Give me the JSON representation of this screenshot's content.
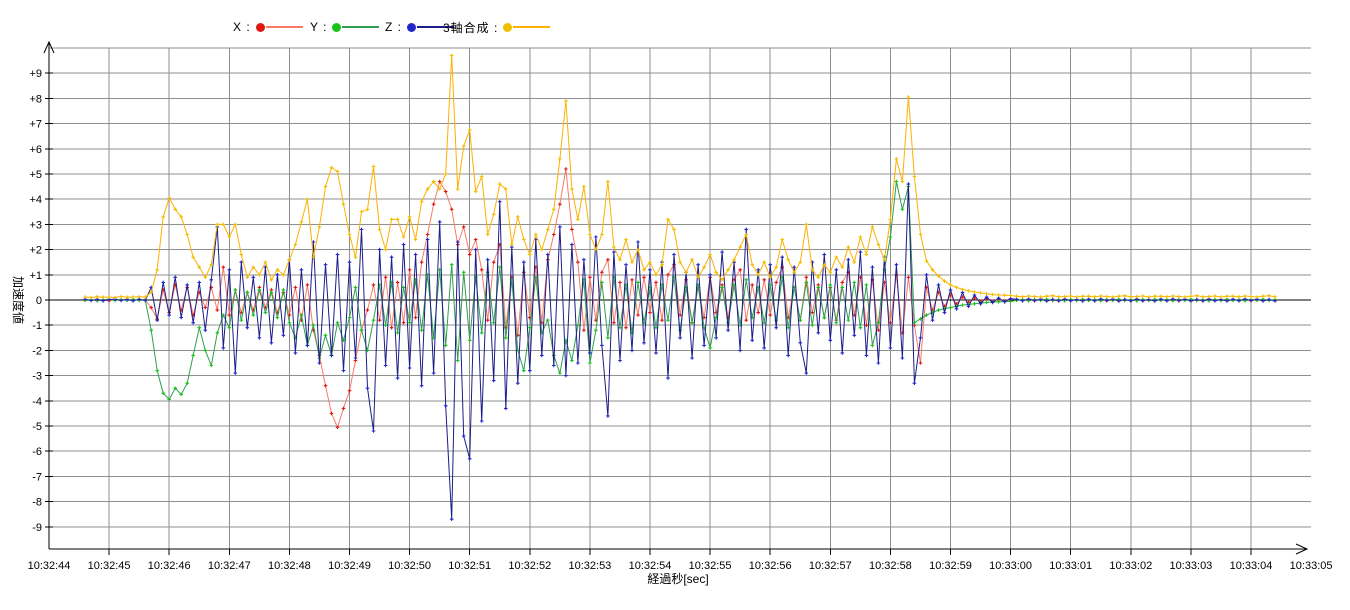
{
  "chart_data": {
    "type": "line",
    "title": "",
    "grid": true,
    "grid_color": "#8f8f8f",
    "axis_color": "#000000",
    "x_axis": {
      "label": "経過秒[sec]",
      "tick_labels": [
        "10:32:44",
        "10:32:45",
        "10:32:46",
        "10:32:47",
        "10:32:48",
        "10:32:49",
        "10:32:50",
        "10:32:51",
        "10:32:52",
        "10:32:53",
        "10:32:54",
        "10:32:55",
        "10:32:56",
        "10:32:57",
        "10:32:58",
        "10:32:59",
        "10:33:00",
        "10:33:01",
        "10:33:02",
        "10:33:03",
        "10:33:04",
        "10:33:05"
      ]
    },
    "y_axis": {
      "label": "加速度値",
      "min": -10,
      "max": 10,
      "tick_values": [
        9,
        8,
        7,
        6,
        5,
        4,
        3,
        2,
        1,
        0,
        -1,
        -2,
        -3,
        -4,
        -5,
        -6,
        -7,
        -8,
        -9
      ],
      "tick_labels": [
        "+9",
        "+8",
        "+7",
        "+6",
        "+5",
        "+4",
        "+3",
        "+2",
        "+1",
        "0",
        "-1",
        "-2",
        "-3",
        "-4",
        "-5",
        "-6",
        "-7",
        "-8",
        "-9"
      ]
    },
    "sampling": {
      "t0": 0.6,
      "dt": 0.1,
      "t_unit": "seconds after 10:32:44"
    },
    "legend_position": "top",
    "series": [
      {
        "id": "x",
        "name": "X :",
        "marker_color": "#e01810",
        "line_color": "#f87a66",
        "values": [
          0.02,
          -0.02,
          0.03,
          0.0,
          -0.03,
          0.02,
          0.0,
          0.03,
          -0.02,
          0.02,
          0.0,
          -0.3,
          -0.75,
          0.4,
          -0.5,
          0.6,
          -0.4,
          0.5,
          -0.6,
          0.3,
          -0.3,
          0.5,
          -0.4,
          1.3,
          -0.6,
          0.4,
          -0.5,
          0.3,
          -0.4,
          0.5,
          -0.3,
          0.4,
          -0.5,
          0.3,
          -0.6,
          0.5,
          -0.8,
          0.6,
          -1.2,
          -2.2,
          -3.4,
          -4.5,
          -5.05,
          -4.3,
          -3.6,
          -2.4,
          -1.2,
          -0.4,
          0.6,
          -0.8,
          0.9,
          -1.1,
          0.7,
          -0.9,
          1.2,
          -0.7,
          1.5,
          2.6,
          3.8,
          4.7,
          4.3,
          3.6,
          2.2,
          2.9,
          1.8,
          2.4,
          1.2,
          -0.8,
          1.5,
          2.2,
          -1.1,
          0.9,
          -1.4,
          1.1,
          -0.7,
          1.3,
          -0.9,
          1.6,
          2.6,
          3.8,
          5.2,
          2.8,
          1.5,
          -1.2,
          0.9,
          -0.8,
          1.1,
          1.6,
          -0.9,
          0.7,
          -1.1,
          0.8,
          -0.6,
          0.9,
          -0.5,
          0.7,
          -0.8,
          1.0,
          1.4,
          -0.6,
          0.8,
          -0.9,
          0.5,
          -0.7,
          0.9,
          -0.5,
          0.6,
          -0.7,
          0.8,
          1.2,
          -0.8,
          0.6,
          -0.5,
          0.8,
          -0.6,
          0.7,
          1.3,
          -0.7,
          0.5,
          -0.8,
          0.9,
          -0.5,
          0.6,
          -0.7,
          0.5,
          -0.8,
          0.7,
          1.1,
          -0.6,
          0.9,
          -1.0,
          0.8,
          -1.2,
          0.7,
          -0.9,
          1.0,
          -1.3,
          0.9,
          -1.0,
          -2.5,
          0.5,
          -0.4,
          0.3,
          -0.25,
          0.2,
          -0.15,
          0.12,
          -0.1,
          0.08,
          -0.06,
          0.05,
          -0.05,
          0.04,
          -0.04,
          0.03,
          0.02,
          -0.02,
          0.03,
          -0.03,
          0.02,
          -0.02,
          0.01,
          -0.03,
          0.03,
          -0.01,
          0.02,
          -0.02,
          0.02,
          -0.02,
          0.03,
          -0.03,
          0.02,
          -0.02,
          0.01,
          -0.03,
          0.03,
          -0.01,
          0.02,
          -0.02,
          0.02,
          -0.02,
          0.03,
          -0.03,
          0.02,
          -0.02,
          0.01,
          -0.03,
          0.03,
          -0.01,
          0.02,
          -0.02,
          0.02,
          -0.02,
          0.03,
          -0.03,
          0.02,
          -0.02,
          0.01,
          -0.03
        ]
      },
      {
        "id": "y",
        "name": "Y :",
        "marker_color": "#18c418",
        "line_color": "#2f9e4f",
        "values": [
          -0.02,
          0.02,
          -0.03,
          0.01,
          0.03,
          -0.02,
          0.02,
          -0.01,
          0.03,
          -0.02,
          0.01,
          -1.2,
          -2.8,
          -3.7,
          -3.95,
          -3.5,
          -3.75,
          -3.3,
          -2.2,
          -1.1,
          -2.0,
          -2.6,
          -1.3,
          -0.6,
          -1.1,
          0.4,
          -0.8,
          0.3,
          -0.6,
          0.4,
          -0.5,
          0.3,
          -0.7,
          0.4,
          -0.9,
          -1.5,
          -0.6,
          -1.8,
          -1.0,
          -2.3,
          -1.4,
          -2.2,
          -0.9,
          -1.6,
          -0.7,
          0.5,
          -1.2,
          -2.0,
          -0.8,
          0.6,
          -1.0,
          0.7,
          -1.3,
          0.5,
          -0.9,
          0.8,
          -1.2,
          1.0,
          -1.5,
          1.2,
          -1.8,
          1.4,
          -2.4,
          1.1,
          -1.6,
          0.9,
          -1.3,
          1.1,
          -0.9,
          1.3,
          -1.5,
          0.8,
          -2.0,
          -2.8,
          -1.1,
          0.9,
          -1.3,
          -0.8,
          -2.2,
          -2.9,
          -1.6,
          -2.4,
          -1.0,
          0.8,
          -2.5,
          -1.2,
          0.7,
          -1.5,
          0.9,
          -1.1,
          0.6,
          -1.3,
          0.7,
          -0.9,
          0.5,
          -1.1,
          0.6,
          -0.8,
          0.9,
          -1.2,
          0.5,
          -0.9,
          0.6,
          -1.1,
          -1.9,
          -0.7,
          0.5,
          -0.9,
          0.6,
          -1.0,
          0.8,
          -0.7,
          0.5,
          -0.9,
          0.6,
          -0.8,
          0.9,
          -1.1,
          0.5,
          -0.8,
          0.7,
          -1.0,
          0.5,
          -0.7,
          0.6,
          -0.9,
          0.5,
          -0.8,
          0.7,
          -1.1,
          0.6,
          -1.8,
          -0.9,
          1.2,
          2.5,
          4.7,
          3.6,
          4.5,
          -0.9,
          -0.75,
          -0.6,
          -0.5,
          -0.4,
          -0.35,
          -0.3,
          -0.25,
          -0.2,
          -0.18,
          -0.15,
          -0.12,
          -0.1,
          -0.08,
          -0.07,
          -0.06,
          -0.05,
          -0.02,
          0.02,
          -0.03,
          0.02,
          -0.01,
          0.03,
          -0.02,
          0.01,
          -0.03,
          0.02,
          -0.02,
          0.03,
          -0.02,
          0.02,
          -0.03,
          0.02,
          -0.01,
          0.03,
          -0.02,
          0.01,
          -0.03,
          0.02,
          -0.02,
          0.03,
          -0.02,
          0.02,
          -0.03,
          0.02,
          -0.01,
          0.03,
          -0.02,
          0.01,
          -0.03,
          0.02,
          -0.02,
          0.03,
          -0.02,
          0.02,
          -0.03,
          0.02,
          -0.01,
          0.03,
          -0.02,
          0.01
        ]
      },
      {
        "id": "z",
        "name": "Z :",
        "marker_color": "#2228c8",
        "line_color": "#1c1c8a",
        "values": [
          0.03,
          -0.02,
          0.02,
          -0.03,
          0.02,
          0.03,
          -0.02,
          0.02,
          -0.03,
          0.03,
          -0.02,
          0.5,
          -0.8,
          0.7,
          -0.6,
          0.9,
          -0.7,
          0.6,
          -0.9,
          0.7,
          -1.2,
          0.8,
          2.9,
          -1.9,
          1.2,
          -2.9,
          1.5,
          -1.1,
          0.9,
          -1.5,
          1.3,
          -1.7,
          1.0,
          -1.4,
          1.6,
          -2.1,
          1.2,
          -1.8,
          2.3,
          -2.5,
          1.4,
          -2.2,
          1.8,
          -2.8,
          1.5,
          -2.3,
          2.8,
          -3.5,
          -5.2,
          2.0,
          -2.6,
          1.7,
          -3.1,
          2.2,
          -2.7,
          1.8,
          -3.4,
          2.4,
          -2.9,
          3.1,
          -4.2,
          -8.7,
          2.3,
          -5.4,
          -6.3,
          2.0,
          -4.8,
          1.6,
          -3.2,
          3.9,
          -4.3,
          2.1,
          -3.3,
          1.5,
          -2.8,
          2.4,
          -2.2,
          1.8,
          -2.6,
          2.9,
          -3.0,
          2.2,
          -2.5,
          1.6,
          -2.1,
          2.5,
          -1.8,
          -4.6,
          1.9,
          -2.4,
          1.4,
          -2.0,
          2.3,
          -1.7,
          1.2,
          -2.1,
          1.5,
          -3.1,
          1.8,
          -1.5,
          1.1,
          -2.3,
          1.4,
          -1.8,
          1.0,
          -1.5,
          1.9,
          -1.2,
          1.5,
          -2.0,
          2.8,
          -1.6,
          1.2,
          -1.9,
          1.4,
          -1.1,
          1.7,
          -2.2,
          1.3,
          -1.7,
          -2.9,
          1.5,
          -1.3,
          1.8,
          -1.6,
          1.2,
          -2.1,
          1.6,
          -1.4,
          1.9,
          -2.2,
          1.3,
          -2.5,
          1.7,
          -1.9,
          1.4,
          -2.3,
          4.6,
          -3.3,
          -1.5,
          1.0,
          -0.8,
          0.6,
          -0.5,
          0.4,
          -0.35,
          0.3,
          -0.25,
          0.2,
          -0.15,
          0.12,
          -0.1,
          0.08,
          -0.07,
          0.05,
          0.03,
          -0.03,
          0.04,
          -0.02,
          0.03,
          -0.04,
          0.02,
          -0.03,
          0.04,
          -0.03,
          0.02,
          -0.04,
          0.03,
          -0.03,
          0.04,
          -0.02,
          0.03,
          -0.04,
          0.02,
          -0.03,
          0.04,
          -0.03,
          0.02,
          -0.04,
          0.03,
          -0.03,
          0.04,
          -0.02,
          0.03,
          -0.04,
          0.02,
          -0.03,
          0.04,
          -0.03,
          0.02,
          -0.04,
          0.03,
          -0.03,
          0.04,
          -0.02,
          0.03,
          -0.04,
          0.02,
          -0.03
        ]
      },
      {
        "id": "composite",
        "name": "3軸合成 :",
        "marker_color": "#f0c000",
        "line_color": "#ffb000",
        "values": [
          0.12,
          0.1,
          0.13,
          0.11,
          0.12,
          0.1,
          0.14,
          0.11,
          0.12,
          0.13,
          0.12,
          0.3,
          1.2,
          3.3,
          4.05,
          3.6,
          3.3,
          2.6,
          1.7,
          1.3,
          0.9,
          1.4,
          3.0,
          3.0,
          2.5,
          3.0,
          1.8,
          0.9,
          1.3,
          1.0,
          1.5,
          0.8,
          1.2,
          1.0,
          1.6,
          2.2,
          3.1,
          4.0,
          1.7,
          2.9,
          4.5,
          5.25,
          5.1,
          3.8,
          2.6,
          1.7,
          3.5,
          3.6,
          5.3,
          2.8,
          2.0,
          3.2,
          3.2,
          2.5,
          3.3,
          2.4,
          3.9,
          4.4,
          4.7,
          4.4,
          5.0,
          9.7,
          4.4,
          6.1,
          6.75,
          4.3,
          4.9,
          2.6,
          3.4,
          4.6,
          4.4,
          2.2,
          3.3,
          2.4,
          1.8,
          2.6,
          2.0,
          2.8,
          3.6,
          5.6,
          7.9,
          4.4,
          3.2,
          4.5,
          2.6,
          2.0,
          2.6,
          4.7,
          2.1,
          1.6,
          2.4,
          1.5,
          2.0,
          1.2,
          1.5,
          1.0,
          1.4,
          3.2,
          2.8,
          1.5,
          1.1,
          1.6,
          0.9,
          1.3,
          1.8,
          1.1,
          0.8,
          1.2,
          1.6,
          2.1,
          2.6,
          1.4,
          1.0,
          1.5,
          0.9,
          1.3,
          2.4,
          1.6,
          1.1,
          1.5,
          3.0,
          1.2,
          0.9,
          1.4,
          1.1,
          1.7,
          1.3,
          2.1,
          1.5,
          2.5,
          1.8,
          2.9,
          2.2,
          1.6,
          3.2,
          5.6,
          4.7,
          8.05,
          4.9,
          2.6,
          1.55,
          1.2,
          0.95,
          0.75,
          0.6,
          0.5,
          0.42,
          0.36,
          0.32,
          0.28,
          0.25,
          0.22,
          0.2,
          0.19,
          0.18,
          0.15,
          0.13,
          0.16,
          0.14,
          0.12,
          0.15,
          0.17,
          0.13,
          0.14,
          0.16,
          0.12,
          0.15,
          0.15,
          0.13,
          0.16,
          0.14,
          0.12,
          0.15,
          0.17,
          0.13,
          0.14,
          0.16,
          0.12,
          0.15,
          0.15,
          0.13,
          0.16,
          0.14,
          0.12,
          0.15,
          0.17,
          0.13,
          0.14,
          0.16,
          0.12,
          0.15,
          0.15,
          0.13,
          0.16,
          0.14,
          0.12,
          0.15,
          0.17,
          0.13
        ]
      }
    ]
  }
}
